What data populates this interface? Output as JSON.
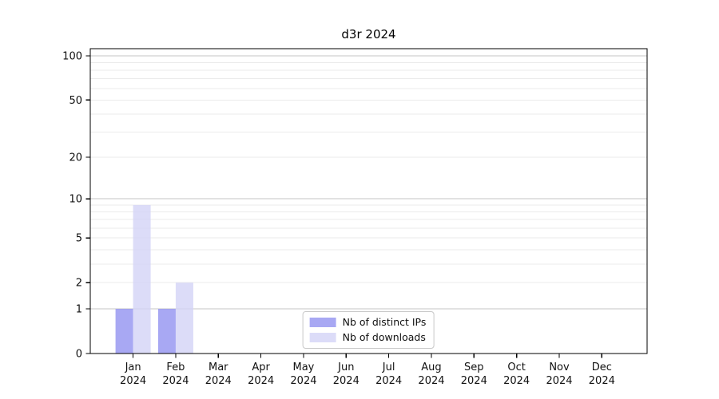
{
  "chart_data": {
    "type": "bar",
    "title": "d3r 2024",
    "x_month_labels": [
      "Jan",
      "Feb",
      "Mar",
      "Apr",
      "May",
      "Jun",
      "Jul",
      "Aug",
      "Sep",
      "Oct",
      "Nov",
      "Dec"
    ],
    "x_year_label": "2024",
    "series": [
      {
        "name": "Nb of distinct IPs",
        "color": "#a8a8f3",
        "fill": "#9292f0",
        "fill_opacity": 0.8,
        "values": [
          1,
          1,
          0,
          0,
          0,
          0,
          0,
          0,
          0,
          0,
          0,
          0
        ]
      },
      {
        "name": "Nb of downloads",
        "color": "#dcdcf8",
        "fill": "#d3d3f6",
        "fill_opacity": 0.8,
        "values": [
          9,
          2,
          0,
          0,
          0,
          0,
          0,
          0,
          0,
          0,
          0,
          0
        ]
      }
    ],
    "y_scale": "log10(1+v)",
    "ylim": [
      0,
      112
    ],
    "y_tick_values": [
      0,
      1,
      2,
      5,
      10,
      20,
      50,
      100
    ],
    "y_grid_major": [
      1,
      10,
      100
    ],
    "y_grid_minor": [
      2,
      3,
      4,
      5,
      6,
      7,
      8,
      9,
      20,
      30,
      40,
      50,
      60,
      70,
      80,
      90
    ],
    "grid_major_color": "#c6c6c6",
    "grid_minor_color": "#ebebeb",
    "axis_color": "#000000",
    "text_color": "#111111",
    "legend_position": "lower center",
    "grid": "on"
  }
}
